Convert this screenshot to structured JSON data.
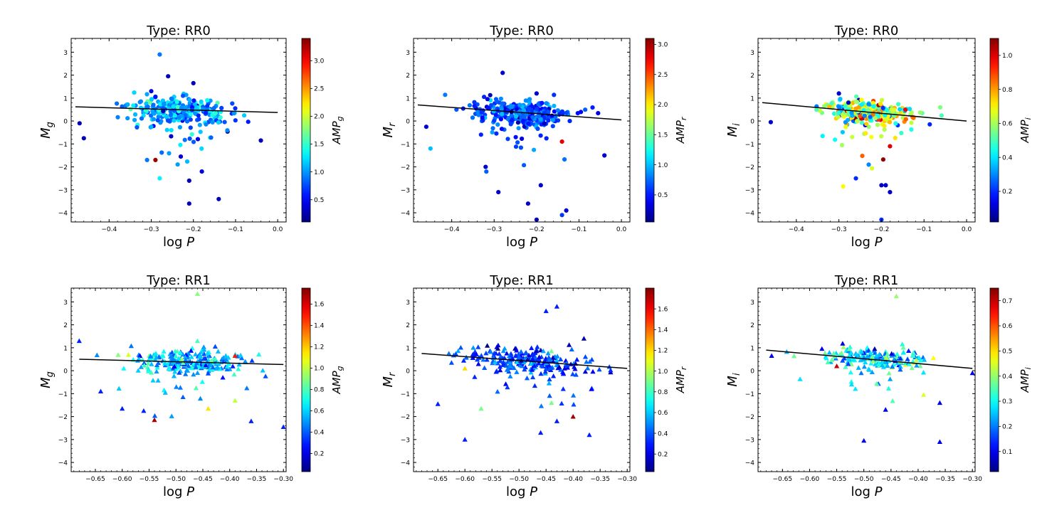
{
  "chart_data": [
    {
      "type": "scatter",
      "title": "Type: RR0",
      "xlabel_text": "log",
      "xlabel_var": "P",
      "ylabel_main": "M",
      "ylabel_sub": "g",
      "marker": "circle",
      "xlim": [
        -0.49,
        0.02
      ],
      "ylim": [
        3.6,
        -4.4
      ],
      "xticks": [
        -0.4,
        -0.3,
        -0.2,
        -0.1,
        0.0
      ],
      "xtick_labels": [
        "−0.4",
        "−0.3",
        "−0.2",
        "−0.1",
        "0.0"
      ],
      "yticks": [
        -4,
        -3,
        -2,
        -1,
        0,
        1,
        2,
        3
      ],
      "ytick_labels": [
        "−4",
        "−3",
        "−2",
        "−1",
        "0",
        "1",
        "2",
        "3"
      ],
      "colorbar": {
        "label_main": "AMP",
        "label_sub": "g",
        "range": [
          0.1,
          3.4
        ],
        "ticks": [
          0.5,
          1.0,
          1.5,
          2.0,
          2.5,
          3.0
        ],
        "tick_labels": [
          "0.5",
          "1.0",
          "1.5",
          "2.0",
          "2.5",
          "3.0"
        ]
      },
      "fit_line": {
        "x": [
          -0.48,
          0.0
        ],
        "y": [
          0.62,
          0.37
        ]
      },
      "cluster": {
        "x_mean": -0.235,
        "x_std": 0.055,
        "y_slope": -0.52,
        "y_intercept": 0.38,
        "y_std": 0.25,
        "n": 320,
        "amp_mean": 1.05,
        "amp_std": 0.3
      },
      "outliers": [
        {
          "x": -0.21,
          "y": -3.6,
          "amp": 0.3
        },
        {
          "x": -0.14,
          "y": -3.4,
          "amp": 0.3
        },
        {
          "x": -0.21,
          "y": -2.6,
          "amp": 0.3
        },
        {
          "x": -0.28,
          "y": -2.5,
          "amp": 1.3
        },
        {
          "x": -0.18,
          "y": -2.2,
          "amp": 0.4
        },
        {
          "x": -0.29,
          "y": -1.7,
          "amp": 3.3
        },
        {
          "x": -0.31,
          "y": -1.7,
          "amp": 0.9
        },
        {
          "x": -0.28,
          "y": 2.9,
          "amp": 0.9
        },
        {
          "x": -0.26,
          "y": 1.95,
          "amp": 0.3
        },
        {
          "x": -0.2,
          "y": 1.65,
          "amp": 0.3
        },
        {
          "x": -0.46,
          "y": -0.75,
          "amp": 0.3
        },
        {
          "x": -0.47,
          "y": -0.1,
          "amp": 0.3
        },
        {
          "x": -0.04,
          "y": -0.85,
          "amp": 0.3
        },
        {
          "x": -0.3,
          "y": 1.3,
          "amp": 0.4
        }
      ]
    },
    {
      "type": "scatter",
      "title": "Type: RR0",
      "xlabel_text": "log",
      "xlabel_var": "P",
      "ylabel_main": "M",
      "ylabel_sub": "r",
      "marker": "circle",
      "xlim": [
        -0.49,
        0.02
      ],
      "ylim": [
        3.6,
        -4.4
      ],
      "xticks": [
        -0.4,
        -0.3,
        -0.2,
        -0.1,
        0.0
      ],
      "xtick_labels": [
        "−0.4",
        "−0.3",
        "−0.2",
        "−0.1",
        "0.0"
      ],
      "yticks": [
        -4,
        -3,
        -2,
        -1,
        0,
        1,
        2,
        3
      ],
      "ytick_labels": [
        "−4",
        "−3",
        "−2",
        "−1",
        "0",
        "1",
        "2",
        "3"
      ],
      "colorbar": {
        "label_main": "AMP",
        "label_sub": "r",
        "range": [
          0.05,
          3.1
        ],
        "ticks": [
          0.5,
          1.0,
          1.5,
          2.0,
          2.5,
          3.0
        ],
        "tick_labels": [
          "0.5",
          "1.0",
          "1.5",
          "2.0",
          "2.5",
          "3.0"
        ]
      },
      "fit_line": {
        "x": [
          -0.48,
          0.0
        ],
        "y": [
          0.7,
          0.05
        ]
      },
      "cluster": {
        "x_mean": -0.235,
        "x_std": 0.055,
        "y_slope": -1.3,
        "y_intercept": 0.05,
        "y_std": 0.27,
        "n": 320,
        "amp_mean": 0.65,
        "amp_std": 0.2
      },
      "outliers": [
        {
          "x": -0.2,
          "y": -4.3,
          "amp": 0.3
        },
        {
          "x": -0.14,
          "y": -4.1,
          "amp": 0.6
        },
        {
          "x": -0.13,
          "y": -3.9,
          "amp": 0.3
        },
        {
          "x": -0.22,
          "y": -3.6,
          "amp": 0.3
        },
        {
          "x": -0.29,
          "y": -3.1,
          "amp": 0.3
        },
        {
          "x": -0.19,
          "y": -2.8,
          "amp": 0.3
        },
        {
          "x": -0.32,
          "y": -2.0,
          "amp": 0.3
        },
        {
          "x": -0.45,
          "y": -1.2,
          "amp": 1.0
        },
        {
          "x": -0.14,
          "y": -0.9,
          "amp": 2.8
        },
        {
          "x": -0.28,
          "y": 2.1,
          "amp": 0.3
        },
        {
          "x": -0.46,
          "y": -0.25,
          "amp": 0.3
        },
        {
          "x": -0.04,
          "y": -1.5,
          "amp": 0.3
        },
        {
          "x": -0.2,
          "y": 1.2,
          "amp": 0.3
        }
      ]
    },
    {
      "type": "scatter",
      "title": "Type: RR0",
      "xlabel_text": "log",
      "xlabel_var": "P",
      "ylabel_main": "M",
      "ylabel_sub": "i",
      "marker": "circle",
      "xlim": [
        -0.49,
        0.02
      ],
      "ylim": [
        3.6,
        -4.4
      ],
      "xticks": [
        -0.4,
        -0.3,
        -0.2,
        -0.1,
        0.0
      ],
      "xtick_labels": [
        "−0.4",
        "−0.3",
        "−0.2",
        "−0.1",
        "0.0"
      ],
      "yticks": [
        -4,
        -3,
        -2,
        -1,
        0,
        1,
        2,
        3
      ],
      "ytick_labels": [
        "−4",
        "−3",
        "−2",
        "−1",
        "0",
        "1",
        "2",
        "3"
      ],
      "colorbar": {
        "label_main": "AMP",
        "label_sub": "i",
        "range": [
          0.02,
          1.1
        ],
        "ticks": [
          0.2,
          0.4,
          0.6,
          0.8,
          1.0
        ],
        "tick_labels": [
          "0.2",
          "0.4",
          "0.6",
          "0.8",
          "1.0"
        ]
      },
      "fit_line": {
        "x": [
          -0.48,
          0.0
        ],
        "y": [
          0.8,
          0.0
        ]
      },
      "cluster": {
        "x_mean": -0.235,
        "x_std": 0.05,
        "y_slope": -1.5,
        "y_intercept": 0.05,
        "y_std": 0.22,
        "n": 300,
        "amp_mean": 0.6,
        "amp_std": 0.2
      },
      "outliers": [
        {
          "x": -0.2,
          "y": -4.3,
          "amp": 0.2
        },
        {
          "x": -0.2,
          "y": -2.8,
          "amp": 0.1
        },
        {
          "x": -0.19,
          "y": -2.8,
          "amp": 0.1
        },
        {
          "x": -0.18,
          "y": -3.1,
          "amp": 0.1
        },
        {
          "x": -0.29,
          "y": -2.85,
          "amp": 0.7
        },
        {
          "x": -0.26,
          "y": -2.5,
          "amp": 0.2
        },
        {
          "x": -0.23,
          "y": -1.9,
          "amp": 0.3
        },
        {
          "x": -0.46,
          "y": -0.05,
          "amp": 0.1
        },
        {
          "x": -0.3,
          "y": 1.2,
          "amp": 0.1
        },
        {
          "x": -0.18,
          "y": -1.1,
          "amp": 1.0
        }
      ]
    },
    {
      "type": "scatter",
      "title": "Type: RR1",
      "xlabel_text": "log",
      "xlabel_var": "P",
      "ylabel_main": "M",
      "ylabel_sub": "g",
      "marker": "triangle",
      "xlim": [
        -0.695,
        -0.295
      ],
      "ylim": [
        3.6,
        -4.4
      ],
      "xticks": [
        -0.65,
        -0.6,
        -0.55,
        -0.5,
        -0.45,
        -0.4,
        -0.35,
        -0.3
      ],
      "xtick_labels": [
        "−0.65",
        "−0.60",
        "−0.55",
        "−0.50",
        "−0.45",
        "−0.40",
        "−0.35",
        "−0.30"
      ],
      "yticks": [
        -4,
        -3,
        -2,
        -1,
        0,
        1,
        2,
        3
      ],
      "ytick_labels": [
        "−4",
        "−3",
        "−2",
        "−1",
        "0",
        "1",
        "2",
        "3"
      ],
      "colorbar": {
        "label_main": "AMP",
        "label_sub": "g",
        "range": [
          0.03,
          1.75
        ],
        "ticks": [
          0.2,
          0.4,
          0.6,
          0.8,
          1.0,
          1.2,
          1.4,
          1.6
        ],
        "tick_labels": [
          "0.2",
          "0.4",
          "0.6",
          "0.8",
          "1.0",
          "1.2",
          "1.4",
          "1.6"
        ]
      },
      "fit_line": {
        "x": [
          -0.68,
          -0.3
        ],
        "y": [
          0.5,
          0.27
        ]
      },
      "cluster": {
        "x_mean": -0.48,
        "x_std": 0.055,
        "y_slope": -0.6,
        "y_intercept": 0.15,
        "y_std": 0.25,
        "n": 250,
        "amp_mean": 0.55,
        "amp_std": 0.15
      },
      "outliers": [
        {
          "x": -0.54,
          "y": -2.15,
          "amp": 1.7
        },
        {
          "x": -0.44,
          "y": -1.65,
          "amp": 1.15
        },
        {
          "x": -0.39,
          "y": -1.3,
          "amp": 1.0
        },
        {
          "x": -0.39,
          "y": 0.65,
          "amp": 1.5
        },
        {
          "x": -0.36,
          "y": -2.2,
          "amp": 0.3
        },
        {
          "x": -0.3,
          "y": -2.45,
          "amp": 0.3
        },
        {
          "x": -0.46,
          "y": 3.35,
          "amp": 0.9
        },
        {
          "x": -0.68,
          "y": 1.3,
          "amp": 0.3
        },
        {
          "x": -0.6,
          "y": -1.65,
          "amp": 0.3
        },
        {
          "x": -0.56,
          "y": -1.75,
          "amp": 0.3
        },
        {
          "x": -0.46,
          "y": 1.3,
          "amp": 0.8
        },
        {
          "x": -0.64,
          "y": -0.9,
          "amp": 0.3
        }
      ]
    },
    {
      "type": "scatter",
      "title": "Type: RR1",
      "xlabel_text": "log",
      "xlabel_var": "P",
      "ylabel_main": "M",
      "ylabel_sub": "r",
      "marker": "triangle",
      "xlim": [
        -0.695,
        -0.295
      ],
      "ylim": [
        3.6,
        -4.4
      ],
      "xticks": [
        -0.65,
        -0.6,
        -0.55,
        -0.5,
        -0.45,
        -0.4,
        -0.35,
        -0.3
      ],
      "xtick_labels": [
        "−0.65",
        "−0.60",
        "−0.55",
        "−0.50",
        "−0.45",
        "−0.40",
        "−0.35",
        "−0.30"
      ],
      "yticks": [
        -4,
        -3,
        -2,
        -1,
        0,
        1,
        2,
        3
      ],
      "ytick_labels": [
        "−4",
        "−3",
        "−2",
        "−1",
        "0",
        "1",
        "2",
        "3"
      ],
      "colorbar": {
        "label_main": "AMP",
        "label_sub": "r",
        "range": [
          0.03,
          1.8
        ],
        "ticks": [
          0.2,
          0.4,
          0.6,
          0.8,
          1.0,
          1.2,
          1.4,
          1.6
        ],
        "tick_labels": [
          "0.2",
          "0.4",
          "0.6",
          "0.8",
          "1.0",
          "1.2",
          "1.4",
          "1.6"
        ]
      },
      "fit_line": {
        "x": [
          -0.68,
          -0.3
        ],
        "y": [
          0.75,
          0.1
        ]
      },
      "cluster": {
        "x_mean": -0.48,
        "x_std": 0.055,
        "y_slope": -1.6,
        "y_intercept": -0.3,
        "y_std": 0.25,
        "n": 250,
        "amp_mean": 0.35,
        "amp_std": 0.12
      },
      "outliers": [
        {
          "x": -0.6,
          "y": -3.0,
          "amp": 0.3
        },
        {
          "x": -0.46,
          "y": -2.7,
          "amp": 0.3
        },
        {
          "x": -0.37,
          "y": -2.8,
          "amp": 0.3
        },
        {
          "x": -0.43,
          "y": -2.2,
          "amp": 0.3
        },
        {
          "x": -0.4,
          "y": -2.0,
          "amp": 1.75
        },
        {
          "x": -0.57,
          "y": -1.65,
          "amp": 0.9
        },
        {
          "x": -0.65,
          "y": -1.45,
          "amp": 0.3
        },
        {
          "x": -0.44,
          "y": -1.4,
          "amp": 0.9
        },
        {
          "x": -0.6,
          "y": 0.1,
          "amp": 1.2
        },
        {
          "x": -0.45,
          "y": 2.6,
          "amp": 0.3
        },
        {
          "x": -0.43,
          "y": 2.8,
          "amp": 0.3
        },
        {
          "x": -0.44,
          "y": 0.85,
          "amp": 0.9
        },
        {
          "x": -0.38,
          "y": 1.4,
          "amp": 0.1
        }
      ]
    },
    {
      "type": "scatter",
      "title": "Type: RR1",
      "xlabel_text": "log",
      "xlabel_var": "P",
      "ylabel_main": "M",
      "ylabel_sub": "i",
      "marker": "triangle",
      "xlim": [
        -0.695,
        -0.295
      ],
      "ylim": [
        3.6,
        -4.4
      ],
      "xticks": [
        -0.65,
        -0.6,
        -0.55,
        -0.5,
        -0.45,
        -0.4,
        -0.35,
        -0.3
      ],
      "xtick_labels": [
        "−0.65",
        "−0.60",
        "−0.55",
        "−0.50",
        "−0.45",
        "−0.40",
        "−0.35",
        "−0.30"
      ],
      "yticks": [
        -4,
        -3,
        -2,
        -1,
        0,
        1,
        2,
        3
      ],
      "ytick_labels": [
        "−4",
        "−3",
        "−2",
        "−1",
        "0",
        "1",
        "2",
        "3"
      ],
      "colorbar": {
        "label_main": "AMP",
        "label_sub": "i",
        "range": [
          0.02,
          0.75
        ],
        "ticks": [
          0.1,
          0.2,
          0.3,
          0.4,
          0.5,
          0.6,
          0.7
        ],
        "tick_labels": [
          "0.1",
          "0.2",
          "0.3",
          "0.4",
          "0.5",
          "0.6",
          "0.7"
        ]
      },
      "fit_line": {
        "x": [
          -0.68,
          -0.3
        ],
        "y": [
          0.9,
          0.1
        ]
      },
      "cluster": {
        "x_mean": -0.48,
        "x_std": 0.045,
        "y_slope": -2.0,
        "y_intercept": -0.4,
        "y_std": 0.22,
        "n": 190,
        "amp_mean": 0.27,
        "amp_std": 0.08
      },
      "outliers": [
        {
          "x": -0.5,
          "y": -3.05,
          "amp": 0.1
        },
        {
          "x": -0.36,
          "y": -3.1,
          "amp": 0.1
        },
        {
          "x": -0.46,
          "y": -1.7,
          "amp": 0.1
        },
        {
          "x": -0.36,
          "y": -1.4,
          "amp": 0.1
        },
        {
          "x": -0.39,
          "y": -1.05,
          "amp": 0.45
        },
        {
          "x": -0.44,
          "y": 3.25,
          "amp": 0.4
        },
        {
          "x": -0.67,
          "y": 0.65,
          "amp": 0.1
        },
        {
          "x": -0.55,
          "y": 0.2,
          "amp": 0.7
        },
        {
          "x": -0.48,
          "y": 0.95,
          "amp": 0.05
        },
        {
          "x": -0.3,
          "y": -0.1,
          "amp": 0.1
        }
      ]
    }
  ]
}
